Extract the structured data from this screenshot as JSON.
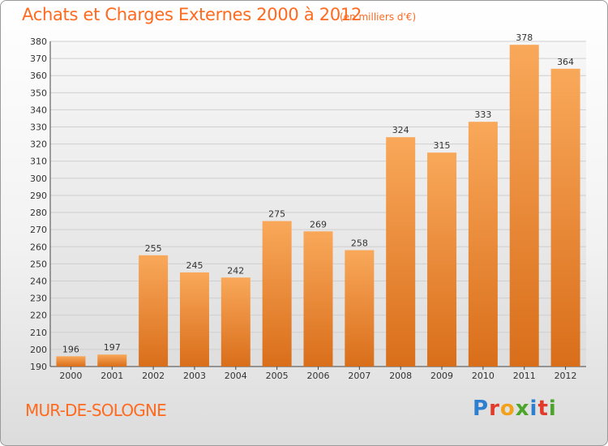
{
  "header": {
    "title": "Achats et Charges Externes 2000 à 2012",
    "unit": "(en milliers d'€)"
  },
  "footer": {
    "commune": "MUR-DE-SOLOGNE",
    "logo_letters": [
      {
        "ch": "P",
        "color": "#2f7fd0"
      },
      {
        "ch": "r",
        "color": "#e23b2a"
      },
      {
        "ch": "o",
        "color": "#f2a11a"
      },
      {
        "ch": "x",
        "color": "#4aa52a"
      },
      {
        "ch": "i",
        "color": "#2f7fd0"
      },
      {
        "ch": "t",
        "color": "#e23b2a"
      },
      {
        "ch": "i",
        "color": "#4aa52a"
      }
    ]
  },
  "colors": {
    "bar_light": "#f9a85a",
    "bar_dark": "#d96e1a",
    "title": "#ff6a1f",
    "grid": "#cfcfcf"
  },
  "chart_data": {
    "type": "bar",
    "title": "Achats et Charges Externes 2000 à 2012",
    "subtitle": "(en milliers d'€)",
    "categories": [
      "2000",
      "2001",
      "2002",
      "2003",
      "2004",
      "2005",
      "2006",
      "2007",
      "2008",
      "2009",
      "2010",
      "2011",
      "2012"
    ],
    "values": [
      196,
      197,
      255,
      245,
      242,
      275,
      269,
      258,
      324,
      315,
      333,
      378,
      364
    ],
    "ylim": [
      190,
      380
    ],
    "yticks": [
      190,
      200,
      210,
      220,
      230,
      240,
      250,
      260,
      270,
      280,
      290,
      300,
      310,
      320,
      330,
      340,
      350,
      360,
      370,
      380
    ],
    "grid": true,
    "data_labels": true
  }
}
